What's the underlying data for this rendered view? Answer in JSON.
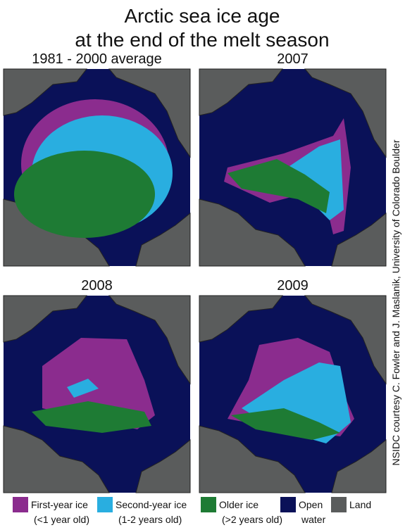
{
  "title": [
    "Arctic sea ice age",
    "at the end of the melt season"
  ],
  "panels": [
    {
      "title": "1981 - 2000 average"
    },
    {
      "title": "2007"
    },
    {
      "title": "2008"
    },
    {
      "title": "2009"
    }
  ],
  "legend": [
    {
      "label": "First-year ice",
      "sublabel": "(<1 year old)",
      "color": "#8b2c8e"
    },
    {
      "label": "Second-year ice",
      "sublabel": "(1-2 years old)",
      "color": "#29aee0"
    },
    {
      "label": "Older ice",
      "sublabel": "(>2 years old)",
      "color": "#1e7b34"
    },
    {
      "label": "Open",
      "sublabel": "water",
      "color": "#0a1158"
    },
    {
      "label": "Land",
      "color": "#5a5c5c"
    }
  ],
  "credit": "NSIDC courtesy C. Fowler and J. Maslanik, University of Colorado Boulder"
}
